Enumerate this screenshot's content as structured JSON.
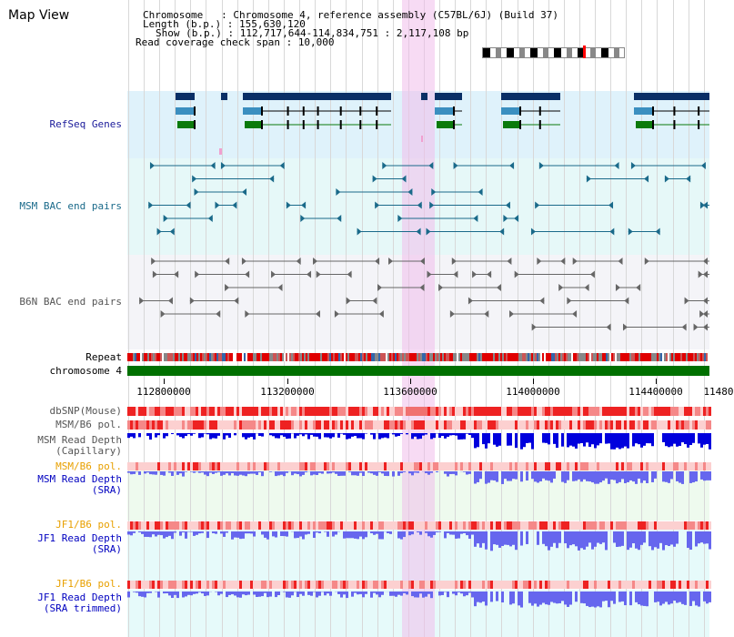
{
  "app": {
    "title": "Map View"
  },
  "header": {
    "chromosome_label": "Chromosome   : ",
    "chromosome_value": "Chromosome 4, reference assembly (C57BL/6J) (Build 37)",
    "length_label": "Length (b.p.) : ",
    "length_value": "155,630,120",
    "show_label": "Show (b.p.) : ",
    "show_value": "112,717,644-114,834,751 : 2,117,108 bp",
    "coverage_label": "Read coverage check span : ",
    "coverage_value": "10,000"
  },
  "tracks": {
    "refseq": {
      "label": "RefSeq Genes",
      "color": "#1a1a9a"
    },
    "msm_bac": {
      "label": "MSM BAC end pairs",
      "color": "#1a6a8a"
    },
    "b6n_bac": {
      "label": "B6N BAC end pairs",
      "color": "#555555"
    },
    "repeat": {
      "label": "Repeat"
    },
    "chromosome": {
      "label": "chromosome 4"
    },
    "dbsnp": {
      "label": "dbSNP(Mouse)"
    },
    "msm_b6_pol_1": {
      "label": "MSM/B6 pol."
    },
    "msm_read_depth_cap": {
      "label1": "MSM Read Depth",
      "label2": "(Capillary)"
    },
    "msm_b6_pol_2": {
      "label": "MSM/B6 pol.",
      "color": "#e8a000"
    },
    "msm_read_depth_sra": {
      "label1": "MSM Read Depth",
      "label2": "(SRA)",
      "color": "#0000c0"
    },
    "jf1_b6_pol_1": {
      "label": "JF1/B6 pol.",
      "color": "#e8a000"
    },
    "jf1_read_depth_sra": {
      "label1": "JF1 Read Depth",
      "label2": "(SRA)",
      "color": "#0000c0"
    },
    "jf1_b6_pol_2": {
      "label": "JF1/B6 pol.",
      "color": "#e8a000"
    },
    "jf1_read_depth_trim": {
      "label1": "JF1 Read Depth",
      "label2": "(SRA trimmed)",
      "color": "#0000c0"
    }
  },
  "axis": {
    "ticks": [
      "112800000",
      "113200000",
      "113600000",
      "114000000",
      "114400000",
      "11480"
    ]
  },
  "colors": {
    "refseq_bg": "#dff2fb",
    "msm_bac_bg": "#e6f8f8",
    "b6n_bac_bg": "#f4f4f8",
    "highlight": "#f6d6f2",
    "chrom_green": "#007000",
    "gene_dark": "#0a2f66",
    "gene_light": "#3b8fc0",
    "gene_green": "#0b7a0b",
    "depth_blue": "#6666ee",
    "depth_dark": "#0000dd"
  }
}
